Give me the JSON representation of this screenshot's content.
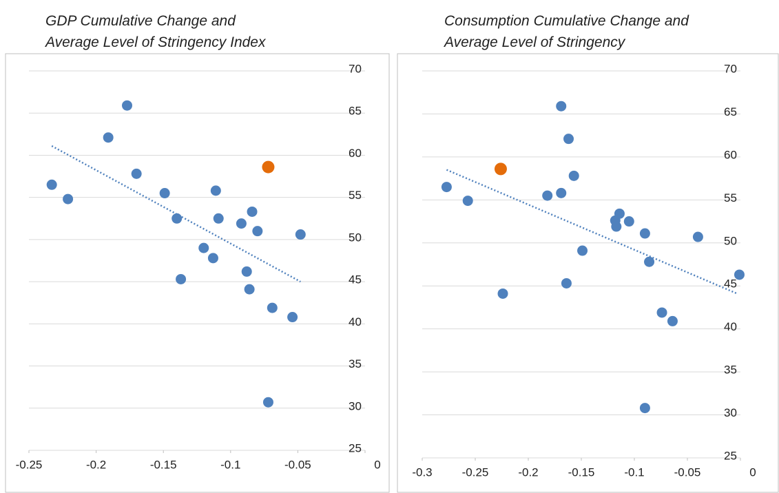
{
  "chart_data": [
    {
      "type": "scatter",
      "title": [
        "GDP Cumulative Change and",
        "Average Level of Stringency Index"
      ],
      "xlim": [
        -0.25,
        0
      ],
      "xticks": [
        -0.25,
        -0.2,
        -0.15,
        -0.1,
        -0.05,
        0
      ],
      "ylim": [
        25,
        70
      ],
      "yticks": [
        25,
        30,
        35,
        40,
        45,
        50,
        55,
        60,
        65,
        70
      ],
      "grid": true,
      "series": [
        {
          "color": "#4f81bd",
          "x": [
            -0.233,
            -0.221,
            -0.191,
            -0.177,
            -0.17,
            -0.149,
            -0.14,
            -0.137,
            -0.12,
            -0.113,
            -0.111,
            -0.109,
            -0.092,
            -0.088,
            -0.086,
            -0.084,
            -0.08,
            -0.072,
            -0.069,
            -0.054,
            -0.048
          ],
          "values": [
            56.5,
            54.8,
            62.1,
            65.9,
            57.8,
            55.5,
            52.5,
            45.3,
            49.0,
            47.8,
            55.8,
            52.5,
            51.9,
            46.2,
            44.1,
            53.3,
            51.0,
            30.7,
            41.9,
            40.8,
            50.6
          ]
        },
        {
          "color": "#e46c0a",
          "x": [
            -0.072
          ],
          "values": [
            58.6
          ]
        }
      ],
      "trendline": {
        "color": "#4f81bd",
        "x": [
          -0.233,
          -0.048
        ],
        "values": [
          61.1,
          45.0
        ]
      }
    },
    {
      "type": "scatter",
      "title": [
        "Consumption Cumulative Change and",
        "Average Level of Stringency"
      ],
      "xlim": [
        -0.3,
        0
      ],
      "xticks": [
        -0.3,
        -0.25,
        -0.2,
        -0.15,
        -0.1,
        -0.05,
        0
      ],
      "ylim": [
        25,
        70
      ],
      "yticks": [
        25,
        30,
        35,
        40,
        45,
        50,
        55,
        60,
        65,
        70
      ],
      "grid": true,
      "series": [
        {
          "color": "#4f81bd",
          "x": [
            -0.277,
            -0.257,
            -0.224,
            -0.182,
            -0.169,
            -0.169,
            -0.164,
            -0.162,
            -0.157,
            -0.149,
            -0.118,
            -0.117,
            -0.114,
            -0.105,
            -0.09,
            -0.09,
            -0.086,
            -0.074,
            -0.064,
            -0.04,
            -0.001
          ],
          "values": [
            56.5,
            54.9,
            44.1,
            55.5,
            55.8,
            65.9,
            45.3,
            62.1,
            57.8,
            49.1,
            52.6,
            51.9,
            53.4,
            52.5,
            51.1,
            30.8,
            47.8,
            41.9,
            40.9,
            50.7,
            46.3
          ]
        },
        {
          "color": "#e46c0a",
          "x": [
            -0.226
          ],
          "values": [
            58.6
          ]
        }
      ],
      "trendline": {
        "color": "#4f81bd",
        "x": [
          -0.277,
          -0.003
        ],
        "values": [
          58.5,
          44.1
        ]
      }
    }
  ]
}
